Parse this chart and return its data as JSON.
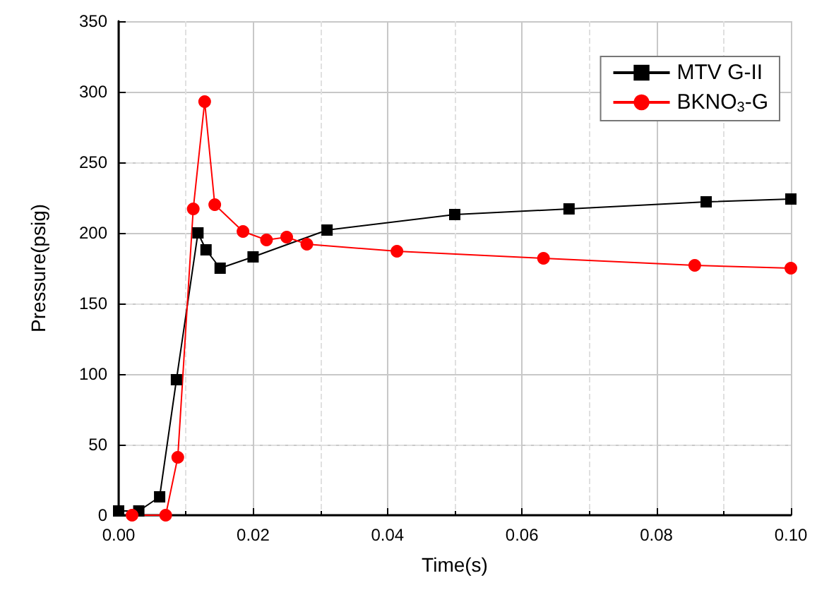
{
  "chart_data": {
    "type": "line",
    "xlabel": "Time(s)",
    "ylabel": "Pressure(psig)",
    "xlim": [
      0,
      0.1
    ],
    "xticks": [
      {
        "value": 0,
        "label": "0.00"
      },
      {
        "value": 0.02,
        "label": "0.02"
      },
      {
        "value": 0.04,
        "label": "0.04"
      },
      {
        "value": 0.06,
        "label": "0.06"
      },
      {
        "value": 0.08,
        "label": "0.08"
      },
      {
        "value": 0.1,
        "label": "0.10"
      }
    ],
    "ylim": [
      0,
      350
    ],
    "yticks": [
      0,
      50,
      100,
      150,
      200,
      250,
      300,
      350
    ],
    "grid": true,
    "legend": "top right",
    "series": [
      {
        "name": "MTV G-II",
        "color": "#000000",
        "marker": "square",
        "x": [
          0,
          0.003,
          0.0061,
          0.0086,
          0.0118,
          0.013,
          0.0151,
          0.02,
          0.031,
          0.05,
          0.067,
          0.0874,
          0.1
        ],
        "values": [
          3,
          3,
          13,
          96,
          200,
          188,
          175,
          183,
          202,
          213,
          217,
          222,
          224
        ]
      },
      {
        "name": "BKNO$_{3}$-G",
        "color": "#ff0000",
        "marker": "circle",
        "x": [
          0.002,
          0.007,
          0.0088,
          0.0111,
          0.0128,
          0.0143,
          0.0185,
          0.022,
          0.025,
          0.028,
          0.0414,
          0.0632,
          0.0857,
          0.1
        ],
        "values": [
          0,
          0,
          41,
          217,
          293,
          220,
          201,
          195,
          197,
          192,
          187,
          182,
          177,
          175
        ]
      }
    ]
  }
}
